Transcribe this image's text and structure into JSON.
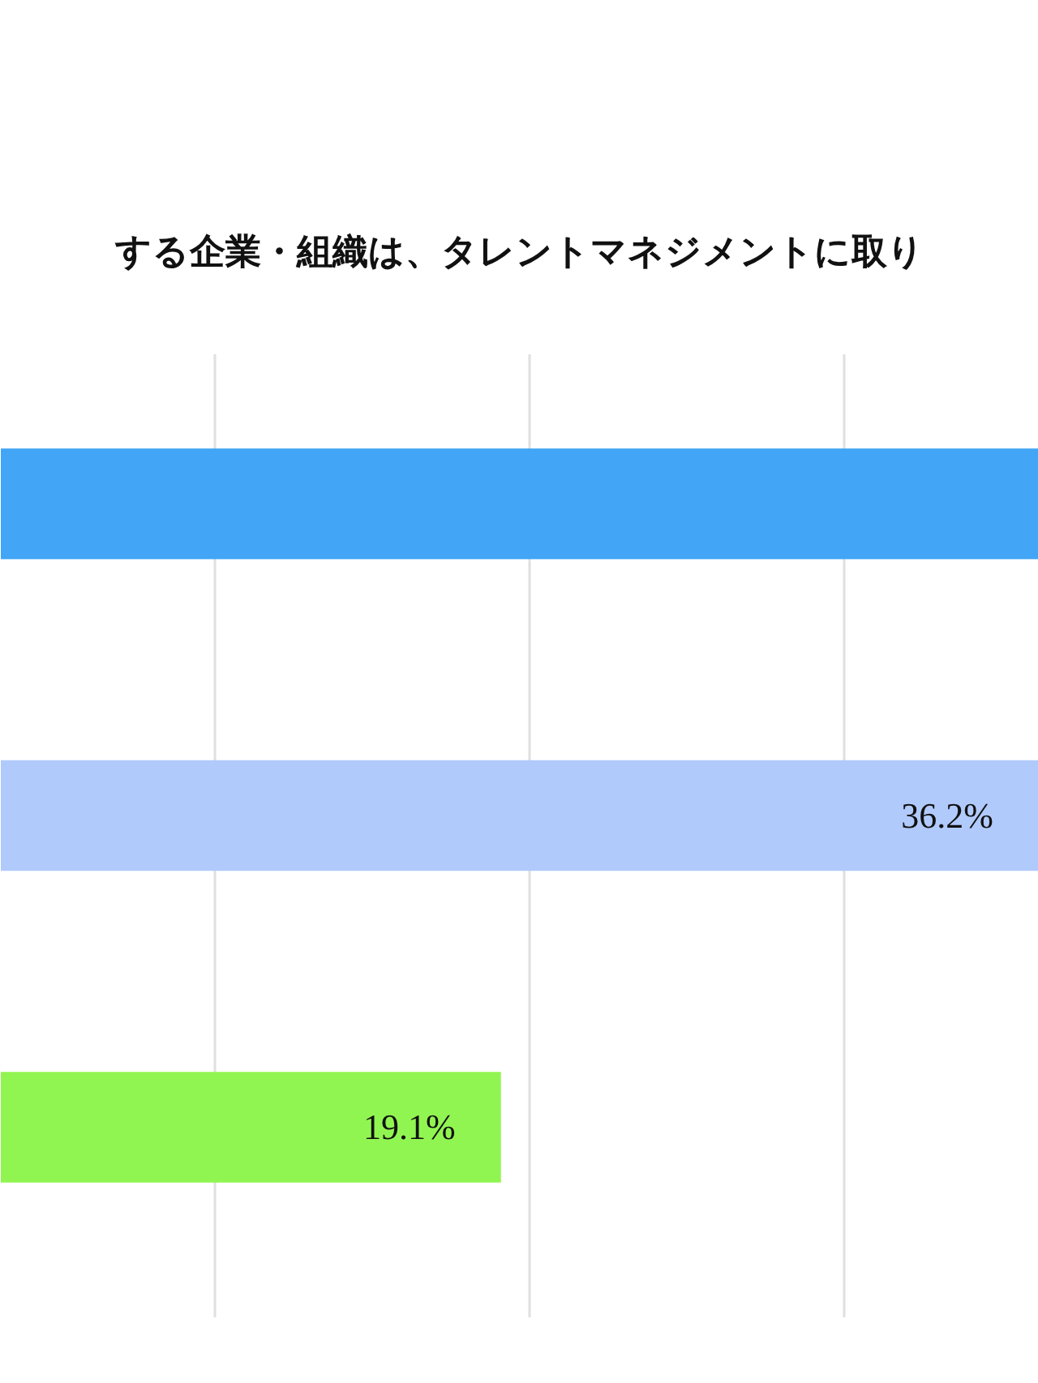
{
  "chart_data": {
    "type": "bar",
    "orientation": "horizontal",
    "title": "する企業・組織は、タレントマネジメントに取り",
    "categories": [
      null,
      null,
      null
    ],
    "values": [
      36.2,
      36.2,
      19.1
    ],
    "value_labels": [
      null,
      "36.2%",
      "19.1%"
    ],
    "colors": [
      "#42a5f5",
      "#b1cafc",
      "#91f551"
    ],
    "xlim": [
      3.2,
      36.2
    ],
    "xticks": [
      {
        "value": 10,
        "label": null
      },
      {
        "value": 20,
        "label": null
      },
      {
        "value": 30,
        "label": null
      }
    ],
    "tick_labels": false,
    "grid": "x"
  }
}
